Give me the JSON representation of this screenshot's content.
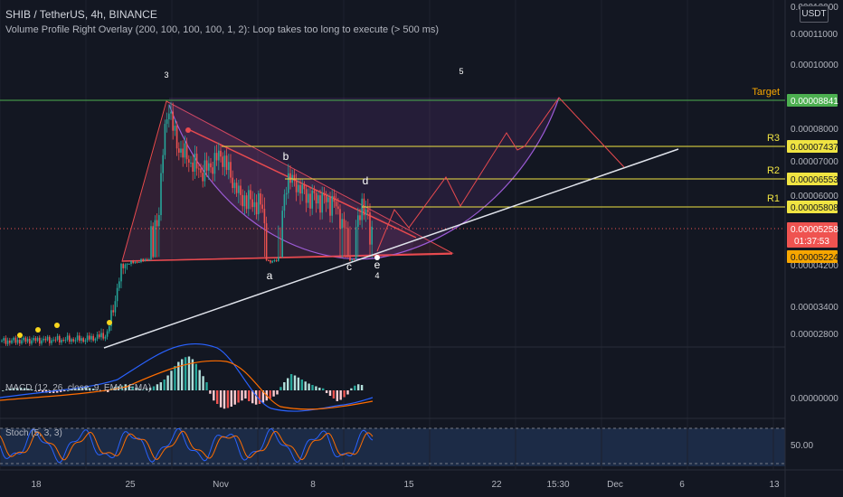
{
  "header": {
    "title": "SHIB / TetherUS, 4h, BINANCE",
    "indicator": "Volume Profile Right Overlay (200, 100, 100, 100, 1, 2): Loop takes too long to execute (> 500 ms)"
  },
  "currency_label": "USDT",
  "panels": {
    "macd_label": "MACD (12, 26, close, 9, EMA, EMA)",
    "stoch_label": "Stoch (5, 3, 3)"
  },
  "colors": {
    "background": "#131722",
    "bull": "#26a69a",
    "bear": "#ef5350",
    "target_line": "#4caf50",
    "level_line": "#f0e442",
    "trend_line": "#e0e3eb",
    "triangle": "#e84a4f",
    "curve": "#9c5bd6",
    "projection": "#e84a4f",
    "macd_line": "#2962ff",
    "signal_line": "#ff6d00",
    "stoch_k": "#2962ff",
    "stoch_d": "#ff6d00"
  },
  "chart_data": {
    "type": "candlestick",
    "price_axis": {
      "ticks": [
        {
          "label": "0.00012000",
          "value": 0.00012
        },
        {
          "label": "0.00011000",
          "value": 0.00011
        },
        {
          "label": "0.00010000",
          "value": 0.0001
        },
        {
          "label": "0.00008000",
          "value": 8e-05
        },
        {
          "label": "0.00007000",
          "value": 7e-05
        },
        {
          "label": "0.00006000",
          "value": 6e-05
        },
        {
          "label": "0.00004200",
          "value": 4.2e-05
        },
        {
          "label": "0.00003400",
          "value": 3.4e-05
        },
        {
          "label": "0.00002800",
          "value": 2.8e-05
        }
      ]
    },
    "time_axis": {
      "ticks": [
        "18",
        "25",
        "Nov",
        "8",
        "15",
        "22",
        "15:30",
        "Dec",
        "6",
        "13"
      ]
    },
    "levels": [
      {
        "name": "Target",
        "price": 8.841e-05,
        "label": "0.00008841",
        "color": "#4caf50"
      },
      {
        "name": "R3",
        "price": 7.437e-05,
        "label": "0.00007437",
        "color": "#f0e442"
      },
      {
        "name": "R2",
        "price": 6.553e-05,
        "label": "0.00006553",
        "color": "#f0e442"
      },
      {
        "name": "R1",
        "price": 5.808e-05,
        "label": "0.00005808",
        "color": "#f0e442"
      }
    ],
    "current_price": {
      "label": "0.00005258",
      "value": 5.258e-05,
      "countdown": "01:37:53"
    },
    "support_price": {
      "label": "0.00005224",
      "value": 5.224e-05
    },
    "wave_labels": [
      "3",
      "5",
      "b",
      "d",
      "a",
      "c",
      "e",
      "4"
    ],
    "macd_axis": {
      "ticks": [
        "0.00000000"
      ]
    },
    "stoch_axis": {
      "ticks": [
        "50.00"
      ]
    },
    "macd_histogram_approx": [
      0.3,
      0.5,
      0.6,
      0.7,
      0.9,
      0.8,
      0.6,
      0.4,
      0.2,
      0.1,
      0.2,
      0.4,
      0.6,
      0.9,
      1.2,
      1.6,
      2.2,
      2.9,
      3.6,
      4.2,
      4.6,
      4.9,
      5.0,
      4.6,
      3.9,
      3.0,
      2.1,
      1.2,
      -0.5,
      -1.5,
      -2.0,
      -2.5,
      -2.7,
      -2.6,
      -2.4,
      -2.1,
      -1.8,
      -1.5,
      -1.2,
      -1.6,
      -1.9,
      -2.1,
      -2.0,
      -1.8,
      -1.5,
      -1.2,
      -0.9,
      -0.6,
      0.5,
      1.2,
      1.8,
      2.4,
      2.2,
      1.9,
      1.6,
      1.3,
      1.0,
      0.8,
      0.6,
      0.4,
      0.3,
      -0.4,
      -0.8,
      -1.2,
      -1.6,
      -1.4,
      -1.0,
      -0.6,
      0.3,
      0.7,
      0.9,
      0.8
    ]
  }
}
